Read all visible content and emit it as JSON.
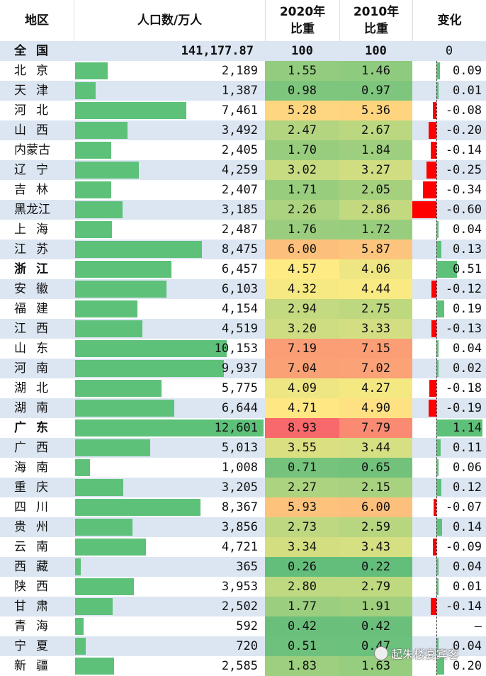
{
  "header": {
    "region": "地区",
    "population": "人口数/万人",
    "share_2020_line1": "2020年",
    "share_2020_line2": "比重",
    "share_2010_line1": "2010年",
    "share_2010_line2": "比重",
    "change": "变化"
  },
  "national": {
    "name": "全国",
    "population": "141,177.87",
    "share_2020": "100",
    "share_2010": "100",
    "change": "0"
  },
  "watermark": "起朱楼宴宾客",
  "colors": {
    "bar_green": "#5ec17a",
    "negative_red": "#ff0000",
    "positive_green": "#5ec17a",
    "row_stripe": "#dce6f2"
  },
  "chart_data": {
    "type": "table",
    "columns": [
      "地区",
      "人口数/万人",
      "2020年比重",
      "2010年比重",
      "变化"
    ],
    "rows": [
      {
        "region": "北京",
        "population": 2189,
        "pop_label": "2,189",
        "r2020": "1.55",
        "r2010": "1.46",
        "change": 0.09,
        "change_label": "0.09"
      },
      {
        "region": "天津",
        "population": 1387,
        "pop_label": "1,387",
        "r2020": "0.98",
        "r2010": "0.97",
        "change": 0.01,
        "change_label": "0.01"
      },
      {
        "region": "河北",
        "population": 7461,
        "pop_label": "7,461",
        "r2020": "5.28",
        "r2010": "5.36",
        "change": -0.08,
        "change_label": "-0.08"
      },
      {
        "region": "山西",
        "population": 3492,
        "pop_label": "3,492",
        "r2020": "2.47",
        "r2010": "2.67",
        "change": -0.2,
        "change_label": "-0.20"
      },
      {
        "region": "内蒙古",
        "population": 2405,
        "pop_label": "2,405",
        "r2020": "1.70",
        "r2010": "1.84",
        "change": -0.14,
        "change_label": "-0.14"
      },
      {
        "region": "辽宁",
        "population": 4259,
        "pop_label": "4,259",
        "r2020": "3.02",
        "r2010": "3.27",
        "change": -0.25,
        "change_label": "-0.25"
      },
      {
        "region": "吉林",
        "population": 2407,
        "pop_label": "2,407",
        "r2020": "1.71",
        "r2010": "2.05",
        "change": -0.34,
        "change_label": "-0.34"
      },
      {
        "region": "黑龙江",
        "population": 3185,
        "pop_label": "3,185",
        "r2020": "2.26",
        "r2010": "2.86",
        "change": -0.6,
        "change_label": "-0.60"
      },
      {
        "region": "上海",
        "population": 2487,
        "pop_label": "2,487",
        "r2020": "1.76",
        "r2010": "1.72",
        "change": 0.04,
        "change_label": "0.04"
      },
      {
        "region": "江苏",
        "population": 8475,
        "pop_label": "8,475",
        "r2020": "6.00",
        "r2010": "5.87",
        "change": 0.13,
        "change_label": "0.13"
      },
      {
        "region": "浙江",
        "population": 6457,
        "pop_label": "6,457",
        "r2020": "4.57",
        "r2010": "4.06",
        "change": 0.51,
        "change_label": "0.51",
        "bold": true
      },
      {
        "region": "安徽",
        "population": 6103,
        "pop_label": "6,103",
        "r2020": "4.32",
        "r2010": "4.44",
        "change": -0.12,
        "change_label": "-0.12"
      },
      {
        "region": "福建",
        "population": 4154,
        "pop_label": "4,154",
        "r2020": "2.94",
        "r2010": "2.75",
        "change": 0.19,
        "change_label": "0.19"
      },
      {
        "region": "江西",
        "population": 4519,
        "pop_label": "4,519",
        "r2020": "3.20",
        "r2010": "3.33",
        "change": -0.13,
        "change_label": "-0.13"
      },
      {
        "region": "山东",
        "population": 10153,
        "pop_label": "10,153",
        "r2020": "7.19",
        "r2010": "7.15",
        "change": 0.04,
        "change_label": "0.04"
      },
      {
        "region": "河南",
        "population": 9937,
        "pop_label": "9,937",
        "r2020": "7.04",
        "r2010": "7.02",
        "change": 0.02,
        "change_label": "0.02"
      },
      {
        "region": "湖北",
        "population": 5775,
        "pop_label": "5,775",
        "r2020": "4.09",
        "r2010": "4.27",
        "change": -0.18,
        "change_label": "-0.18"
      },
      {
        "region": "湖南",
        "population": 6644,
        "pop_label": "6,644",
        "r2020": "4.71",
        "r2010": "4.90",
        "change": -0.19,
        "change_label": "-0.19"
      },
      {
        "region": "广东",
        "population": 12601,
        "pop_label": "12,601",
        "r2020": "8.93",
        "r2010": "7.79",
        "change": 1.14,
        "change_label": "1.14",
        "bold": true
      },
      {
        "region": "广西",
        "population": 5013,
        "pop_label": "5,013",
        "r2020": "3.55",
        "r2010": "3.44",
        "change": 0.11,
        "change_label": "0.11"
      },
      {
        "region": "海南",
        "population": 1008,
        "pop_label": "1,008",
        "r2020": "0.71",
        "r2010": "0.65",
        "change": 0.06,
        "change_label": "0.06"
      },
      {
        "region": "重庆",
        "population": 3205,
        "pop_label": "3,205",
        "r2020": "2.27",
        "r2010": "2.15",
        "change": 0.12,
        "change_label": "0.12"
      },
      {
        "region": "四川",
        "population": 8367,
        "pop_label": "8,367",
        "r2020": "5.93",
        "r2010": "6.00",
        "change": -0.07,
        "change_label": "-0.07"
      },
      {
        "region": "贵州",
        "population": 3856,
        "pop_label": "3,856",
        "r2020": "2.73",
        "r2010": "2.59",
        "change": 0.14,
        "change_label": "0.14"
      },
      {
        "region": "云南",
        "population": 4721,
        "pop_label": "4,721",
        "r2020": "3.34",
        "r2010": "3.43",
        "change": -0.09,
        "change_label": "-0.09"
      },
      {
        "region": "西藏",
        "population": 365,
        "pop_label": "365",
        "r2020": "0.26",
        "r2010": "0.22",
        "change": 0.04,
        "change_label": "0.04"
      },
      {
        "region": "陕西",
        "population": 3953,
        "pop_label": "3,953",
        "r2020": "2.80",
        "r2010": "2.79",
        "change": 0.01,
        "change_label": "0.01"
      },
      {
        "region": "甘肃",
        "population": 2502,
        "pop_label": "2,502",
        "r2020": "1.77",
        "r2010": "1.91",
        "change": -0.14,
        "change_label": "-0.14"
      },
      {
        "region": "青海",
        "population": 592,
        "pop_label": "592",
        "r2020": "0.42",
        "r2010": "0.42",
        "change": 0,
        "change_label": "–"
      },
      {
        "region": "宁夏",
        "population": 720,
        "pop_label": "720",
        "r2020": "0.51",
        "r2010": "0.47",
        "change": 0.04,
        "change_label": "0.04"
      },
      {
        "region": "新疆",
        "population": 2585,
        "pop_label": "2,585",
        "r2020": "1.83",
        "r2010": "1.63",
        "change": 0.2,
        "change_label": "0.20"
      }
    ],
    "population_max": 12601,
    "share_range": [
      0.22,
      8.93
    ],
    "change_range": [
      -0.6,
      1.14
    ]
  }
}
